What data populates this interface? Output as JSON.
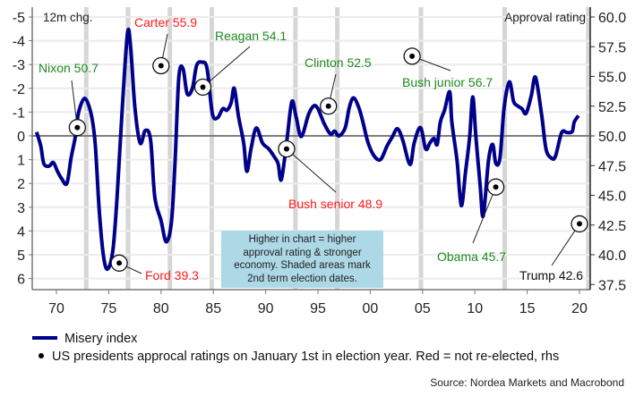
{
  "chart_data": {
    "type": "line",
    "left_axis_label": "12m chg.",
    "right_axis_label": "Approval rating",
    "left_ylim": [
      -5.5,
      6.5
    ],
    "left_inverted": true,
    "left_ticks": [
      -5,
      -4,
      -3,
      -2,
      -1,
      0,
      1,
      2,
      3,
      4,
      5,
      6
    ],
    "right_ticks": [
      "60.0",
      "57.5",
      "55.0",
      "52.5",
      "50.0",
      "47.5",
      "45.0",
      "42.5",
      "40.0",
      "37.5"
    ],
    "right_tick_values": [
      60,
      57.5,
      55,
      52.5,
      50,
      47.5,
      45,
      42.5,
      40,
      37.5
    ],
    "x_ticks": [
      "70",
      "75",
      "80",
      "85",
      "90",
      "95",
      "00",
      "05",
      "10",
      "15",
      "20"
    ],
    "x_tick_values": [
      1970,
      1975,
      1980,
      1985,
      1990,
      1995,
      2000,
      2005,
      2010,
      2015,
      2020
    ],
    "xlim": [
      1967.7,
      2021.0
    ],
    "shaded_periods": [
      1972.85,
      1976.85,
      1980.85,
      1984.85,
      1992.85,
      1996.85,
      2004.85,
      2012.85,
      2020.85
    ],
    "series": [
      {
        "name": "Misery index",
        "color": "#00008b",
        "x": [
          1968.1,
          1968.5,
          1968.8,
          1969.3,
          1969.7,
          1970.1,
          1970.5,
          1971.0,
          1971.4,
          1971.8,
          1972.1,
          1972.7,
          1973.3,
          1973.7,
          1974.1,
          1974.5,
          1974.9,
          1975.4,
          1975.8,
          1976.3,
          1976.8,
          1977.1,
          1977.5,
          1978.0,
          1978.5,
          1979.0,
          1979.4,
          1980.0,
          1980.5,
          1981.0,
          1981.35,
          1981.7,
          1982.1,
          1982.5,
          1983.0,
          1983.4,
          1983.9,
          1984.4,
          1984.9,
          1985.4,
          1985.9,
          1986.3,
          1986.7,
          1987.0,
          1987.4,
          1987.9,
          1988.2,
          1988.6,
          1989.1,
          1989.7,
          1990.3,
          1990.9,
          1991.2,
          1991.5,
          1992.0,
          1992.5,
          1992.9,
          1993.4,
          1994.1,
          1994.6,
          1995.0,
          1995.6,
          1996.2,
          1996.6,
          1997.0,
          1997.6,
          1998.0,
          1998.4,
          1998.9,
          1999.3,
          1999.8,
          2000.4,
          2001.0,
          2001.6,
          2002.1,
          2002.6,
          2003.1,
          2003.8,
          2004.2,
          2004.8,
          2005.3,
          2005.7,
          2006.1,
          2006.4,
          2006.7,
          2007.1,
          2007.6,
          2007.8,
          2008.3,
          2008.7,
          2009.1,
          2009.5,
          2009.8,
          2010.1,
          2010.5,
          2010.8,
          2011.3,
          2011.7,
          2012.0,
          2012.4,
          2012.8,
          2013.3,
          2013.7,
          2014.1,
          2014.5,
          2014.9,
          2015.4,
          2015.8,
          2016.4,
          2016.8,
          2017.3,
          2017.7,
          2018.3,
          2018.8,
          2019.3,
          2019.5,
          2019.9
        ],
        "values": [
          -0.16,
          0.42,
          1.17,
          1.27,
          1.12,
          1.49,
          1.8,
          2.0,
          0.93,
          0.05,
          -0.95,
          -1.58,
          -0.95,
          0.3,
          3.18,
          5.06,
          5.6,
          4.8,
          2.56,
          -1.2,
          -4.33,
          -3.7,
          -1.2,
          0.3,
          -0.23,
          0.17,
          2.56,
          3.56,
          4.46,
          3.6,
          1.0,
          -2.46,
          -2.83,
          -1.77,
          -2.0,
          -2.96,
          -3.1,
          -2.83,
          -0.95,
          -0.76,
          -1.14,
          -1.08,
          -1.39,
          -2.0,
          -0.83,
          0.3,
          1.49,
          0.55,
          -0.33,
          0.3,
          0.55,
          0.93,
          1.18,
          1.84,
          0.3,
          -1.43,
          -0.83,
          0.03,
          -0.9,
          -1.26,
          -1.14,
          -0.51,
          -0.08,
          -0.2,
          0.0,
          -0.33,
          -1.2,
          -1.6,
          -1.2,
          -0.58,
          0.3,
          0.86,
          0.99,
          0.43,
          0.05,
          -0.3,
          0.17,
          1.2,
          0.3,
          -0.35,
          0.55,
          0.3,
          0.11,
          0.36,
          -0.58,
          -1.08,
          -1.85,
          -0.58,
          1.05,
          2.93,
          1.55,
          0.05,
          -1.64,
          0.05,
          2.05,
          3.37,
          1.05,
          0.36,
          1.15,
          0.93,
          -1.2,
          -2.27,
          -1.45,
          -1.26,
          -1.14,
          -0.95,
          -1.7,
          -2.46,
          -0.83,
          0.55,
          0.93,
          0.86,
          -0.14,
          -0.14,
          -0.18,
          -0.58,
          -0.85
        ]
      }
    ],
    "presidents": [
      {
        "label": "Nixon 50.7",
        "year": 1972,
        "rating": 50.7,
        "color": "#1e8a1e"
      },
      {
        "label": "Carter 55.9",
        "year": 1980,
        "rating": 55.9,
        "color": "#ff1a1a"
      },
      {
        "label": "Reagan 54.1",
        "year": 1984,
        "rating": 54.1,
        "color": "#1e8a1e"
      },
      {
        "label": "Ford 39.3",
        "year": 1976,
        "rating": 39.3,
        "color": "#ff1a1a"
      },
      {
        "label": "Bush senior 48.9",
        "year": 1992,
        "rating": 48.9,
        "color": "#ff1a1a"
      },
      {
        "label": "Clinton 52.5",
        "year": 1996,
        "rating": 52.5,
        "color": "#1e8a1e"
      },
      {
        "label": "Bush junior 56.7",
        "year": 2004,
        "rating": 56.7,
        "color": "#1e8a1e"
      },
      {
        "label": "Obama 45.7",
        "year": 2012,
        "rating": 45.7,
        "color": "#1e8a1e"
      },
      {
        "label": "Trump 42.6",
        "year": 2020,
        "rating": 42.6,
        "color": "#111111"
      }
    ],
    "annotation_box": [
      "Higher in chart = higher",
      "approval rating & stronger",
      "economy. Shaded areas mark",
      "2nd term election dates."
    ],
    "legend": {
      "placement": "bottom-left",
      "items": [
        "Misery index",
        "US presidents approcal ratings on January 1st in election year. Red = not re-elected, rhs"
      ]
    },
    "source": "Source: Nordea Markets and Macrobond"
  }
}
